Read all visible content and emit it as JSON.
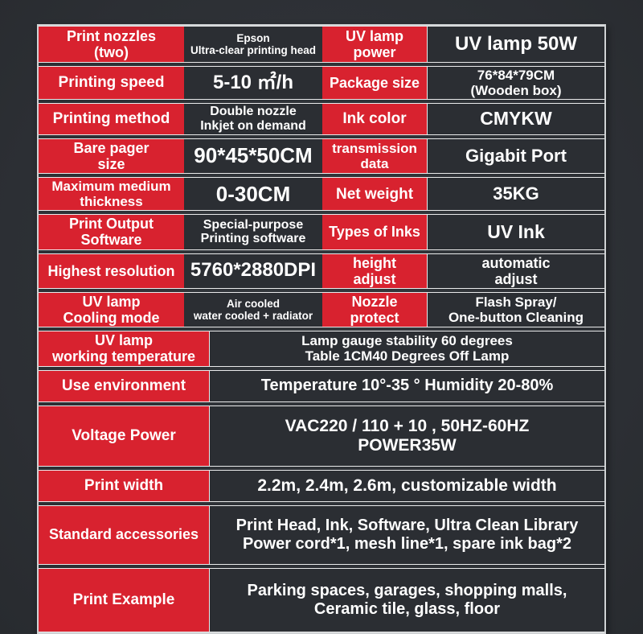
{
  "colors": {
    "label_red": "#d8222f",
    "value_dark": "#2b2e33",
    "page_background": "#2e3136",
    "cell_border": "#e9eaeb",
    "text": "#ffffff"
  },
  "spec_table": {
    "rows_4col": [
      {
        "label1": "Print nozzles\n(two)",
        "value1": "Epson\nUltra-clear printing head",
        "label2": "UV lamp\npower",
        "value2": "UV lamp 50W"
      },
      {
        "label1": "Printing speed",
        "value1": "5-10 ㎡/h",
        "label2": "Package size",
        "value2": "76*84*79CM\n(Wooden box)"
      },
      {
        "label1": "Printing method",
        "value1": "Double nozzle\nInkjet on demand",
        "label2": "Ink color",
        "value2": "CMYKW"
      },
      {
        "label1": "Bare pager\nsize",
        "value1": "90*45*50CM",
        "label2": "transmission\ndata",
        "value2": "Gigabit Port"
      },
      {
        "label1": "Maximum medium\nthickness",
        "value1": "0-30CM",
        "label2": "Net weight",
        "value2": "35KG"
      },
      {
        "label1": "Print Output\nSoftware",
        "value1": "Special-purpose\nPrinting software",
        "label2": "Types of Inks",
        "value2": "UV Ink"
      },
      {
        "label1": "Highest resolution",
        "value1": "5760*2880DPI",
        "label2": "height\nadjust",
        "value2": "automatic\nadjust"
      },
      {
        "label1": "UV lamp\nCooling mode",
        "value1": "Air cooled\nwater cooled + radiator",
        "label2": "Nozzle\nprotect",
        "value2": "Flash Spray/\nOne-button Cleaning"
      }
    ],
    "rows_2col": [
      {
        "label": "UV lamp\nworking temperature",
        "value": "Lamp gauge stability 60 degrees\nTable 1CM40 Degrees Off Lamp"
      },
      {
        "label": "Use environment",
        "value": "Temperature 10°-35 °  Humidity 20-80%"
      },
      {
        "label": "Voltage Power",
        "value": "VAC220 / 110 + 10 , 50HZ-60HZ\nPOWER35W"
      },
      {
        "label": "Print width",
        "value": "2.2m, 2.4m, 2.6m, customizable width"
      },
      {
        "label": "Standard accessories",
        "value": "Print Head, Ink, Software, Ultra Clean Library\nPower cord*1, mesh line*1, spare ink bag*2"
      },
      {
        "label": "Print Example",
        "value": "Parking spaces, garages, shopping malls,\nCeramic tile, glass, floor"
      }
    ]
  }
}
